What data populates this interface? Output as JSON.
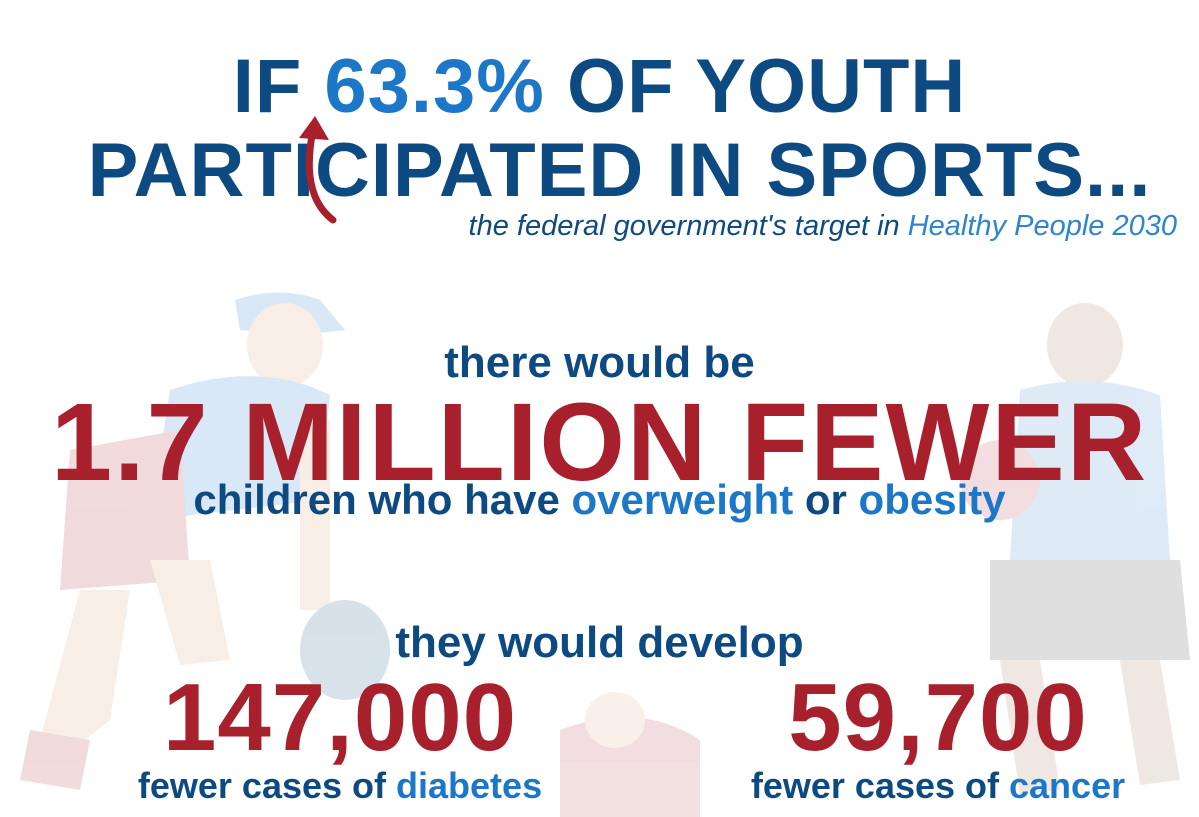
{
  "headline": {
    "line1_prefix": "IF ",
    "line1_percent": "63.3%",
    "line1_suffix": " OF YOUTH",
    "line2": "PARTICIPATED IN SPORTS..."
  },
  "subline": {
    "prefix": "the federal government's target in ",
    "highlight": "Healthy People 2030"
  },
  "impact": {
    "intro": "there would be",
    "big_number": "1.7 MILLION FEWER",
    "children_prefix": "children who have ",
    "overweight": "overweight",
    "or": " or ",
    "obesity": "obesity"
  },
  "develop_intro": "they would develop",
  "stats": [
    {
      "number": "147,000",
      "label_prefix": "fewer cases of ",
      "label_highlight": "diabetes"
    },
    {
      "number": "59,700",
      "label_prefix": "fewer cases of ",
      "label_highlight": "cancer"
    }
  ],
  "colors": {
    "navy": "#0d4a82",
    "blue": "#1d77c9",
    "red": "#a8202c",
    "arrow": "#a8202c"
  },
  "icons": [
    "curved-arrow-icon",
    "baseball-player-illustration",
    "soccer-player-illustration"
  ]
}
